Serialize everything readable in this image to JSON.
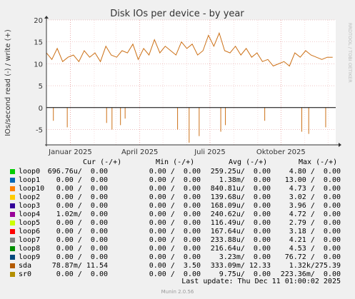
{
  "chart_data": {
    "type": "line",
    "title": "Disk IOs per device - by year",
    "ylabel": "IOs/second read (-) / write (+)",
    "watermark": "RRDTOOL / TOBI OETIKER",
    "ylim": [
      -8.5,
      20
    ],
    "yticks": [
      -5,
      0,
      5,
      10,
      15,
      20
    ],
    "xlim": [
      "2024-12-01",
      "2025-12-11"
    ],
    "xticks": [
      {
        "label": "Januar 2025",
        "date": "2025-01-01"
      },
      {
        "label": "April 2025",
        "date": "2025-04-01"
      },
      {
        "label": "Juli 2025",
        "date": "2025-07-01"
      },
      {
        "label": "Oktober 2025",
        "date": "2025-10-01"
      }
    ],
    "grid": true,
    "series": [
      {
        "name": "sda",
        "color": "#cc7016",
        "direction": "write",
        "x": [
          "2024-12-01",
          "2024-12-08",
          "2024-12-15",
          "2024-12-22",
          "2024-12-29",
          "2025-01-05",
          "2025-01-12",
          "2025-01-19",
          "2025-01-26",
          "2025-02-02",
          "2025-02-09",
          "2025-02-16",
          "2025-02-23",
          "2025-03-02",
          "2025-03-09",
          "2025-03-16",
          "2025-03-23",
          "2025-03-30",
          "2025-04-06",
          "2025-04-13",
          "2025-04-20",
          "2025-04-27",
          "2025-05-04",
          "2025-05-11",
          "2025-05-18",
          "2025-05-25",
          "2025-06-01",
          "2025-06-08",
          "2025-06-15",
          "2025-06-22",
          "2025-06-29",
          "2025-07-06",
          "2025-07-13",
          "2025-07-20",
          "2025-07-27",
          "2025-08-03",
          "2025-08-10",
          "2025-08-17",
          "2025-08-24",
          "2025-08-31",
          "2025-09-07",
          "2025-09-14",
          "2025-09-21",
          "2025-09-28",
          "2025-10-05",
          "2025-10-12",
          "2025-10-19",
          "2025-10-26",
          "2025-11-02",
          "2025-11-09",
          "2025-11-16",
          "2025-11-23",
          "2025-11-30",
          "2025-12-07"
        ],
        "values": [
          12.5,
          11.0,
          13.5,
          10.5,
          11.5,
          12.0,
          10.5,
          13.0,
          11.5,
          12.5,
          10.5,
          14.0,
          12.0,
          11.5,
          13.0,
          12.5,
          14.5,
          11.0,
          13.5,
          12.0,
          15.5,
          12.5,
          14.0,
          13.0,
          12.0,
          15.0,
          13.5,
          14.5,
          12.0,
          13.0,
          16.5,
          14.0,
          17.0,
          13.0,
          12.5,
          14.0,
          12.0,
          13.5,
          11.5,
          12.5,
          10.5,
          11.0,
          9.5,
          10.0,
          10.5,
          9.5,
          12.5,
          11.5,
          13.0,
          12.0,
          11.5,
          11.0,
          11.5,
          11.5
        ]
      },
      {
        "name": "sda",
        "color": "#cc7016",
        "direction": "read",
        "x": [
          "2024-12-10",
          "2024-12-28",
          "2025-02-17",
          "2025-02-24",
          "2025-03-07",
          "2025-03-13",
          "2025-05-20",
          "2025-06-04",
          "2025-06-17",
          "2025-07-15",
          "2025-07-21",
          "2025-09-10",
          "2025-10-28",
          "2025-11-06",
          "2025-11-28"
        ],
        "values": [
          -3.0,
          -4.5,
          -3.5,
          -5.0,
          -4.0,
          -2.5,
          -5.0,
          -8.0,
          -6.5,
          -5.5,
          -4.0,
          -3.0,
          -5.5,
          -6.0,
          -4.5
        ]
      }
    ]
  },
  "legend": {
    "headers": {
      "cur": "Cur (-/+)",
      "min": "Min (-/+)",
      "avg": "Avg (-/+)",
      "max": "Max (-/+)"
    },
    "rows": [
      {
        "name": "loop0",
        "color": "#00cc00",
        "cur": "696.76u/  0.00",
        "min": "0.00 /  0.00",
        "avg": "259.25u/  0.00",
        "max": "4.80 /  0.00"
      },
      {
        "name": "loop1",
        "color": "#0066b3",
        "cur": "0.00 /  0.00",
        "min": "0.00 /  0.00",
        "avg": "1.38m/  0.00",
        "max": "13.00 /  0.00"
      },
      {
        "name": "loop10",
        "color": "#ff8000",
        "cur": "0.00 /  0.00",
        "min": "0.00 /  0.00",
        "avg": "840.81u/  0.00",
        "max": "4.73 /  0.00"
      },
      {
        "name": "loop2",
        "color": "#ffcc00",
        "cur": "0.00 /  0.00",
        "min": "0.00 /  0.00",
        "avg": "139.68u/  0.00",
        "max": "3.02 /  0.00"
      },
      {
        "name": "loop3",
        "color": "#330099",
        "cur": "0.00 /  0.00",
        "min": "0.00 /  0.00",
        "avg": "168.09u/  0.00",
        "max": "3.96 /  0.00"
      },
      {
        "name": "loop4",
        "color": "#990099",
        "cur": "1.02m/  0.00",
        "min": "0.00 /  0.00",
        "avg": "240.62u/  0.00",
        "max": "4.72 /  0.00"
      },
      {
        "name": "loop5",
        "color": "#ccff00",
        "cur": "0.00 /  0.00",
        "min": "0.00 /  0.00",
        "avg": "116.49u/  0.00",
        "max": "2.79 /  0.00"
      },
      {
        "name": "loop6",
        "color": "#ff0000",
        "cur": "0.00 /  0.00",
        "min": "0.00 /  0.00",
        "avg": "167.64u/  0.00",
        "max": "3.18 /  0.00"
      },
      {
        "name": "loop7",
        "color": "#808080",
        "cur": "0.00 /  0.00",
        "min": "0.00 /  0.00",
        "avg": "233.88u/  0.00",
        "max": "4.21 /  0.00"
      },
      {
        "name": "loop8",
        "color": "#008f00",
        "cur": "0.00 /  0.00",
        "min": "0.00 /  0.00",
        "avg": "216.64u/  0.00",
        "max": "4.53 /  0.00"
      },
      {
        "name": "loop9",
        "color": "#00487d",
        "cur": "0.00 /  0.00",
        "min": "0.00 /  0.00",
        "avg": "3.23m/  0.00",
        "max": "76.72 /  0.00"
      },
      {
        "name": "sda",
        "color": "#b35a00",
        "cur": "78.87m/ 11.54",
        "min": "0.00 /  3.50",
        "avg": "333.09m/ 12.33",
        "max": "1.32k/275.39"
      },
      {
        "name": "sr0",
        "color": "#b38f00",
        "cur": "0.00 /  0.00",
        "min": "0.00 /  0.00",
        "avg": "9.75u/  0.00",
        "max": "223.36m/  0.00"
      }
    ]
  },
  "footer": {
    "last_update": "Last update: Thu Dec 11 01:00:02 2025",
    "version": "Munin 2.0.56"
  }
}
